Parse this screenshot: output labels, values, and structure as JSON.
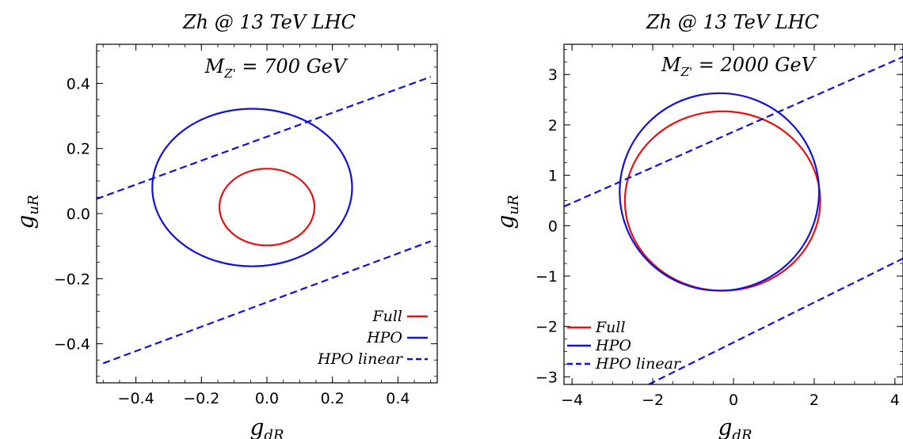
{
  "chart_data": [
    {
      "type": "line",
      "title": "Zh @ 13 TeV LHC",
      "annotation": {
        "main": "M",
        "sub": "Z'",
        "rest": " = 700 GeV"
      },
      "xlabel": {
        "main": "g",
        "sub": "dR"
      },
      "ylabel": {
        "main": "g",
        "sub": "uR"
      },
      "xlim": [
        -0.52,
        0.52
      ],
      "ylim": [
        -0.52,
        0.52
      ],
      "xticks": [
        -0.4,
        -0.2,
        0.0,
        0.2,
        0.4
      ],
      "xticklabels": [
        "−0.4",
        "−0.2",
        "0.0",
        "0.2",
        "0.4"
      ],
      "yticks": [
        -0.4,
        -0.2,
        0.0,
        0.2,
        0.4
      ],
      "yticklabels": [
        "−0.4",
        "−0.2",
        "0.0",
        "0.2",
        "0.4"
      ],
      "legend_position": "bottom-right",
      "series": [
        {
          "name": "Full",
          "color": "#e81010",
          "style": "solid",
          "shape": "ellipse",
          "center": [
            0.0,
            0.02
          ],
          "radii": [
            0.145,
            0.118
          ]
        },
        {
          "name": "HPO",
          "color": "#1010e0",
          "style": "solid",
          "shape": "ellipse",
          "center": [
            -0.045,
            0.08
          ],
          "radii": [
            0.305,
            0.242
          ]
        },
        {
          "name": "HPO linear",
          "color": "#1010e0",
          "style": "dashed",
          "shape": "lines",
          "lines": [
            {
              "x": [
                -0.52,
                0.5
              ],
              "y": [
                0.045,
                0.42
              ]
            },
            {
              "x": [
                -0.5,
                0.5
              ],
              "y": [
                -0.46,
                -0.085
              ]
            }
          ]
        }
      ]
    },
    {
      "type": "line",
      "title": "Zh @ 13 TeV LHC",
      "annotation": {
        "main": "M",
        "sub": "Z'",
        "rest": " = 2000 GeV"
      },
      "xlabel": {
        "main": "g",
        "sub": "dR"
      },
      "ylabel": {
        "main": "g",
        "sub": "uR"
      },
      "xlim": [
        -4.2,
        4.2
      ],
      "ylim": [
        -3.15,
        3.6
      ],
      "xticks": [
        -4,
        -2,
        0,
        2,
        4
      ],
      "xticklabels": [
        "−4",
        "−2",
        "0",
        "2",
        "4"
      ],
      "yticks": [
        -3,
        -2,
        -1,
        0,
        1,
        2,
        3
      ],
      "yticklabels": [
        "−3",
        "−2",
        "−1",
        "0",
        "1",
        "2",
        "3"
      ],
      "legend_position": "bottom-left",
      "series": [
        {
          "name": "Full",
          "color": "#e81010",
          "style": "solid",
          "shape": "ellipse",
          "center": [
            -0.27,
            0.49
          ],
          "radii": [
            2.42,
            1.78
          ]
        },
        {
          "name": "HPO",
          "color": "#1010e0",
          "style": "solid",
          "shape": "ellipse",
          "center": [
            -0.35,
            0.67
          ],
          "radii": [
            2.47,
            1.96
          ]
        },
        {
          "name": "HPO linear",
          "color": "#1010e0",
          "style": "dashed",
          "shape": "lines",
          "lines": [
            {
              "x": [
                -4.2,
                4.2
              ],
              "y": [
                0.38,
                3.35
              ]
            },
            {
              "x": [
                -2.1,
                4.2
              ],
              "y": [
                -3.15,
                -0.65
              ]
            }
          ]
        }
      ]
    }
  ]
}
